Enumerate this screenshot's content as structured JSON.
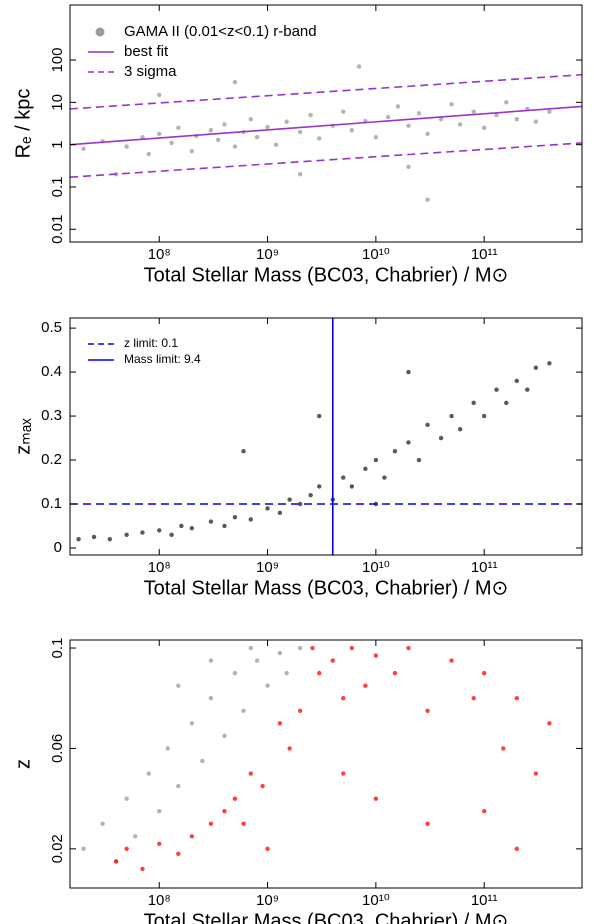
{
  "chart_data": [
    {
      "type": "scatter",
      "xlabel": "Total Stellar Mass (BC03, Chabrier) / M⊙",
      "ylabel": "Rₑ / kpc",
      "log_x": true,
      "log_y": true,
      "legend": "upper left",
      "xlim": [
        15000000,
        800000000000
      ],
      "ylim": [
        0.005,
        2000
      ],
      "xticks": [
        {
          "value": 100000000,
          "label": "10⁸"
        },
        {
          "value": 1000000000,
          "label": "10⁹"
        },
        {
          "value": 10000000000,
          "label": "10¹⁰"
        },
        {
          "value": 100000000000,
          "label": "10¹¹"
        }
      ],
      "yticks": [
        0.01,
        0.1,
        1,
        10,
        100
      ],
      "series": [
        {
          "name": "GAMA II (0.01<z<0.1) r-band",
          "color": "#9a9a9a",
          "style": "points",
          "x": [
            20000000.0,
            30000000.0,
            50000000.0,
            70000000.0,
            80000000.0,
            100000000.0,
            130000000.0,
            150000000.0,
            200000000.0,
            220000000.0,
            300000000.0,
            350000000.0,
            400000000.0,
            500000000.0,
            600000000.0,
            700000000.0,
            800000000.0,
            1000000000.0,
            1200000000.0,
            1500000000.0,
            2000000000.0,
            2500000000.0,
            3000000000.0,
            4000000000.0,
            5000000000.0,
            6000000000.0,
            8000000000.0,
            10000000000.0,
            13000000000.0,
            16000000000.0,
            20000000000.0,
            25000000000.0,
            30000000000.0,
            40000000000.0,
            50000000000.0,
            60000000000.0,
            80000000000.0,
            100000000000.0,
            130000000000.0,
            160000000000.0,
            200000000000.0,
            250000000000.0,
            300000000000.0,
            400000000000.0,
            500000000.0,
            2000000000.0,
            30000000000.0,
            100000000.0,
            7000000000.0,
            20000000000.0,
            40000000.0
          ],
          "y": [
            0.8,
            1.2,
            0.9,
            1.5,
            0.6,
            1.8,
            1.1,
            2.5,
            0.7,
            1.6,
            2.2,
            1.3,
            3.0,
            0.9,
            2.0,
            4.0,
            1.5,
            2.6,
            1.0,
            3.5,
            2.0,
            5.0,
            1.4,
            2.8,
            6.0,
            2.2,
            3.6,
            1.5,
            4.5,
            8.0,
            2.8,
            5.5,
            1.8,
            4.0,
            9.0,
            3.0,
            6.0,
            2.5,
            5.0,
            10,
            4.0,
            7.0,
            3.5,
            6.0,
            30,
            0.2,
            0.05,
            15,
            70,
            0.3,
            0.2
          ]
        },
        {
          "name": "best fit",
          "color": "#9933cc",
          "style": "solid",
          "x": [
            15000000,
            800000000000
          ],
          "y": [
            1.0,
            8
          ]
        },
        {
          "name": "3 sigma",
          "color": "#9933cc",
          "style": "dashed",
          "x": [
            15000000,
            800000000000
          ],
          "y": [
            7,
            45
          ]
        },
        {
          "color": "#9933cc",
          "style": "dashed",
          "x": [
            15000000,
            800000000000
          ],
          "y": [
            0.17,
            1.1
          ]
        }
      ]
    },
    {
      "type": "scatter",
      "xlabel": "Total Stellar Mass (BC03, Chabrier) / M⊙",
      "ylabel": "zₘₐₓ",
      "log_x": true,
      "log_y": false,
      "legend": "upper left",
      "xlim": [
        15000000,
        800000000000
      ],
      "ylim": [
        -0.016,
        0.523
      ],
      "xticks": [
        {
          "value": 100000000,
          "label": "10⁸"
        },
        {
          "value": 1000000000,
          "label": "10⁹"
        },
        {
          "value": 10000000000,
          "label": "10¹⁰"
        },
        {
          "value": 100000000000,
          "label": "10¹¹"
        }
      ],
      "yticks": [
        0,
        0.1,
        0.2,
        0.3,
        0.4,
        0.5
      ],
      "series": [
        {
          "color": "#222222",
          "style": "points",
          "x": [
            18000000.0,
            25000000.0,
            35000000.0,
            50000000.0,
            70000000.0,
            100000000.0,
            130000000.0,
            160000000.0,
            200000000.0,
            300000000.0,
            400000000.0,
            500000000.0,
            700000000.0,
            1000000000.0,
            1300000000.0,
            1600000000.0,
            2000000000.0,
            2500000000.0,
            3000000000.0,
            4000000000.0,
            5000000000.0,
            6000000000.0,
            8000000000.0,
            10000000000.0,
            12000000000.0,
            15000000000.0,
            20000000000.0,
            25000000000.0,
            30000000000.0,
            40000000000.0,
            50000000000.0,
            60000000000.0,
            80000000000.0,
            100000000000.0,
            130000000000.0,
            160000000000.0,
            200000000000.0,
            250000000000.0,
            300000000000.0,
            400000000000.0,
            3000000000.0,
            600000000.0,
            20000000000.0,
            10000000000.0
          ],
          "y": [
            0.02,
            0.025,
            0.02,
            0.03,
            0.035,
            0.04,
            0.03,
            0.05,
            0.045,
            0.06,
            0.05,
            0.07,
            0.065,
            0.09,
            0.08,
            0.11,
            0.1,
            0.12,
            0.14,
            0.11,
            0.16,
            0.14,
            0.18,
            0.2,
            0.16,
            0.22,
            0.24,
            0.2,
            0.28,
            0.25,
            0.3,
            0.27,
            0.33,
            0.3,
            0.36,
            0.33,
            0.38,
            0.36,
            0.41,
            0.42,
            0.3,
            0.22,
            0.4,
            0.1
          ]
        },
        {
          "name": "z limit: 0.1",
          "color": "#0000ee",
          "style": "dashed",
          "x": [
            15000000,
            800000000000
          ],
          "y": [
            0.1,
            0.1
          ]
        },
        {
          "name": "Mass limit: 9.4",
          "color": "#0000ee",
          "style": "solid",
          "x": [
            4000000000,
            4000000000
          ],
          "y": [
            -0.016,
            0.523
          ]
        }
      ]
    },
    {
      "type": "scatter",
      "xlabel": "Total Stellar Mass (BC03, Chabrier) / M⊙",
      "ylabel": "z",
      "log_x": true,
      "log_y": false,
      "xlim": [
        15000000,
        800000000000
      ],
      "ylim": [
        0.0044,
        0.1032
      ],
      "xticks": [
        {
          "value": 100000000,
          "label": "10⁸"
        },
        {
          "value": 1000000000,
          "label": "10⁹"
        },
        {
          "value": 10000000000,
          "label": "10¹⁰"
        },
        {
          "value": 100000000000,
          "label": "10¹¹"
        }
      ],
      "yticks": [
        0.02,
        0.06,
        0.1
      ],
      "series": [
        {
          "color": "#9a9a9a",
          "style": "points",
          "x": [
            20000000.0,
            30000000.0,
            40000000.0,
            50000000.0,
            60000000.0,
            80000000.0,
            100000000.0,
            120000000.0,
            150000000.0,
            200000000.0,
            250000000.0,
            300000000.0,
            400000000.0,
            500000000.0,
            600000000.0,
            800000000.0,
            1000000000.0,
            1500000000.0,
            2000000000.0,
            1300000000.0,
            700000000.0,
            300000000.0,
            150000000.0
          ],
          "y": [
            0.02,
            0.03,
            0.015,
            0.04,
            0.025,
            0.05,
            0.035,
            0.06,
            0.045,
            0.07,
            0.055,
            0.08,
            0.065,
            0.09,
            0.075,
            0.095,
            0.085,
            0.09,
            0.1,
            0.098,
            0.1,
            0.095,
            0.085
          ]
        },
        {
          "color": "#ff0000",
          "style": "points",
          "x": [
            40000000.0,
            50000000.0,
            70000000.0,
            100000000.0,
            150000000.0,
            200000000.0,
            300000000.0,
            400000000.0,
            500000000.0,
            600000000.0,
            700000000.0,
            900000000.0,
            1000000000.0,
            1300000000.0,
            1600000000.0,
            2000000000.0,
            2600000000.0,
            3000000000.0,
            4000000000.0,
            5000000000.0,
            6000000000.0,
            8000000000.0,
            10000000000.0,
            15000000000.0,
            20000000000.0,
            30000000000.0,
            50000000000.0,
            80000000000.0,
            100000000000.0,
            150000000000.0,
            200000000000.0,
            300000000000.0,
            400000000000.0,
            30000000000.0,
            10000000000.0,
            5000000000.0,
            200000000000.0,
            100000000000.0
          ],
          "y": [
            0.015,
            0.02,
            0.012,
            0.022,
            0.018,
            0.025,
            0.03,
            0.035,
            0.04,
            0.03,
            0.05,
            0.045,
            0.02,
            0.07,
            0.06,
            0.075,
            0.1,
            0.09,
            0.095,
            0.08,
            0.1,
            0.085,
            0.097,
            0.09,
            0.1,
            0.075,
            0.095,
            0.08,
            0.09,
            0.06,
            0.08,
            0.05,
            0.07,
            0.03,
            0.04,
            0.05,
            0.02,
            0.035
          ]
        }
      ]
    }
  ]
}
